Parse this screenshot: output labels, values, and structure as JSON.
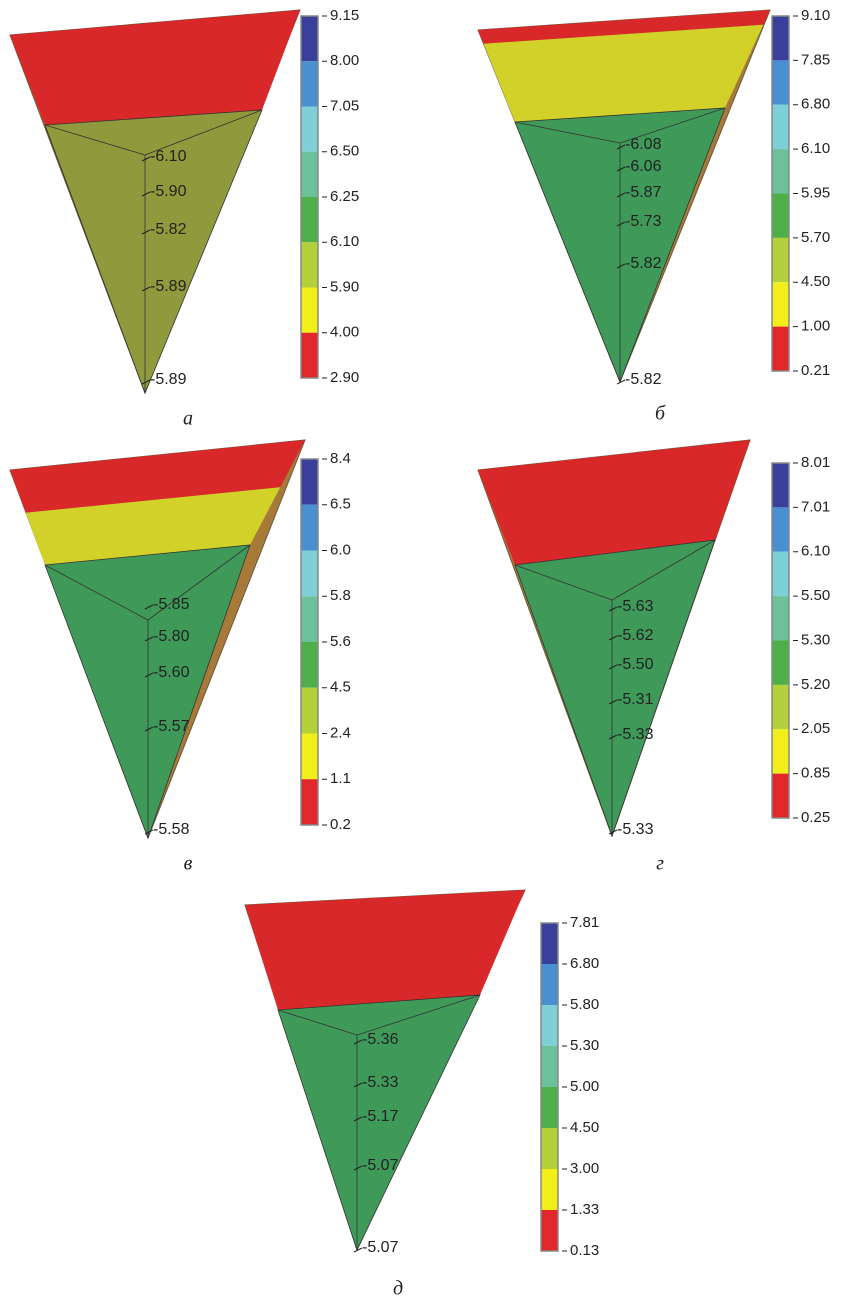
{
  "panels": [
    {
      "caption": "а",
      "scale": [
        "9.15",
        "8.00",
        "7.05",
        "6.50",
        "6.25",
        "6.10",
        "5.90",
        "4.00",
        "2.90"
      ],
      "points": [
        "-6.10",
        "-5.90",
        "-5.82",
        "-5.89",
        "-5.89"
      ]
    },
    {
      "caption": "б",
      "scale": [
        "9.10",
        "7.85",
        "6.80",
        "6.10",
        "5.95",
        "5.70",
        "4.50",
        "1.00",
        "0.21"
      ],
      "points": [
        "-6.08",
        "-6.06",
        "-5.87",
        "-5.73",
        "-5.82",
        "-5.82"
      ]
    },
    {
      "caption": "в",
      "scale": [
        "8.4",
        "6.5",
        "6.0",
        "5.8",
        "5.6",
        "4.5",
        "2.4",
        "1.1",
        "0.2"
      ],
      "points": [
        "-5.85",
        "-5.80",
        "-5.60",
        "-5.57",
        "-5.58"
      ]
    },
    {
      "caption": "г",
      "scale": [
        "8.01",
        "7.01",
        "6.10",
        "5.50",
        "5.30",
        "5.20",
        "2.05",
        "0.85",
        "0.25"
      ],
      "points": [
        "-5.63",
        "-5.62",
        "-5.50",
        "-5.31",
        "-5.33",
        "-5.33"
      ]
    },
    {
      "caption": "д",
      "scale": [
        "7.81",
        "6.80",
        "5.80",
        "5.30",
        "5.00",
        "4.50",
        "3.00",
        "1.33",
        "0.13"
      ],
      "points": [
        "-5.36",
        "-5.33",
        "-5.17",
        "-5.07",
        "-5.07"
      ]
    }
  ]
}
